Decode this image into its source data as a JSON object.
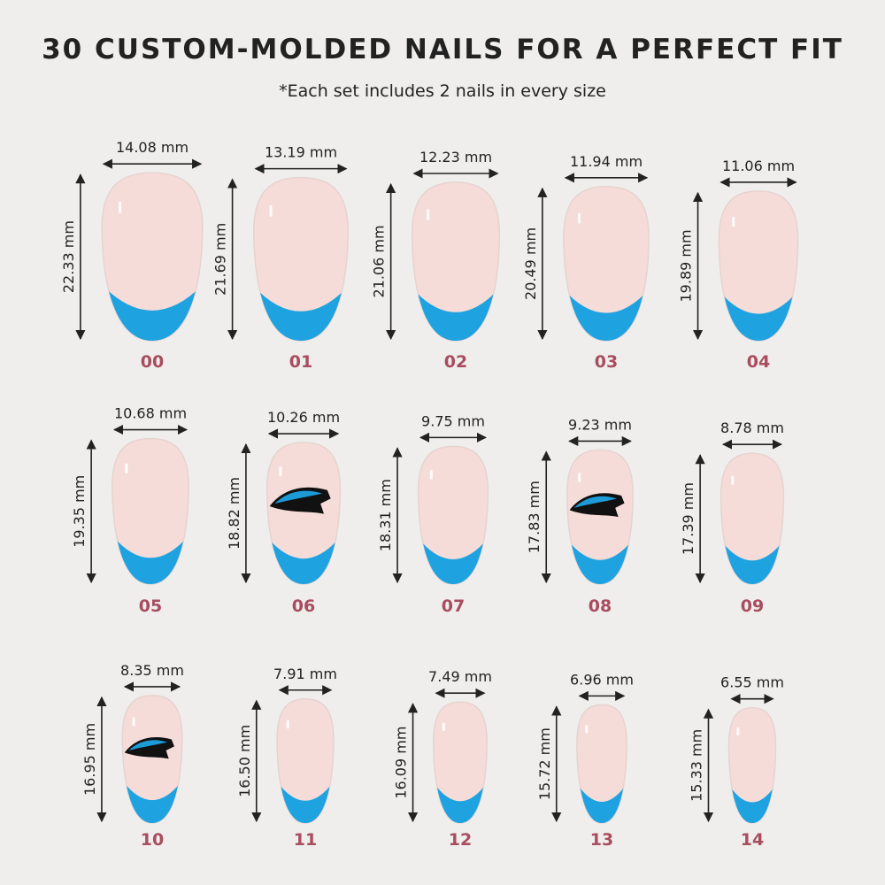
{
  "title": "30 CUSTOM-MOLDED NAILS FOR A PERFECT FIT",
  "subtitle": "*Each set includes 2 nails in every size",
  "colors": {
    "nail_base": "#f5dcd8",
    "tip": "#1fa3e0",
    "size_number": "#a84d5f",
    "background": "#efeeec"
  },
  "nails": [
    {
      "size": "00",
      "width": "14.08 mm",
      "length": "22.33 mm",
      "logo": false
    },
    {
      "size": "01",
      "width": "13.19 mm",
      "length": "21.69 mm",
      "logo": false
    },
    {
      "size": "02",
      "width": "12.23 mm",
      "length": "21.06 mm",
      "logo": false
    },
    {
      "size": "03",
      "width": "11.94 mm",
      "length": "20.49 mm",
      "logo": false
    },
    {
      "size": "04",
      "width": "11.06 mm",
      "length": "19.89 mm",
      "logo": false
    },
    {
      "size": "05",
      "width": "10.68 mm",
      "length": "19.35 mm",
      "logo": false
    },
    {
      "size": "06",
      "width": "10.26 mm",
      "length": "18.82 mm",
      "logo": true
    },
    {
      "size": "07",
      "width": "9.75 mm",
      "length": "18.31 mm",
      "logo": false
    },
    {
      "size": "08",
      "width": "9.23 mm",
      "length": "17.83 mm",
      "logo": true
    },
    {
      "size": "09",
      "width": "8.78 mm",
      "length": "17.39 mm",
      "logo": false
    },
    {
      "size": "10",
      "width": "8.35 mm",
      "length": "16.95 mm",
      "logo": true
    },
    {
      "size": "11",
      "width": "7.91 mm",
      "length": "16.50 mm",
      "logo": false
    },
    {
      "size": "12",
      "width": "7.49 mm",
      "length": "16.09 mm",
      "logo": false
    },
    {
      "size": "13",
      "width": "6.96 mm",
      "length": "15.72 mm",
      "logo": false
    },
    {
      "size": "14",
      "width": "6.55 mm",
      "length": "15.33 mm",
      "logo": false
    }
  ]
}
